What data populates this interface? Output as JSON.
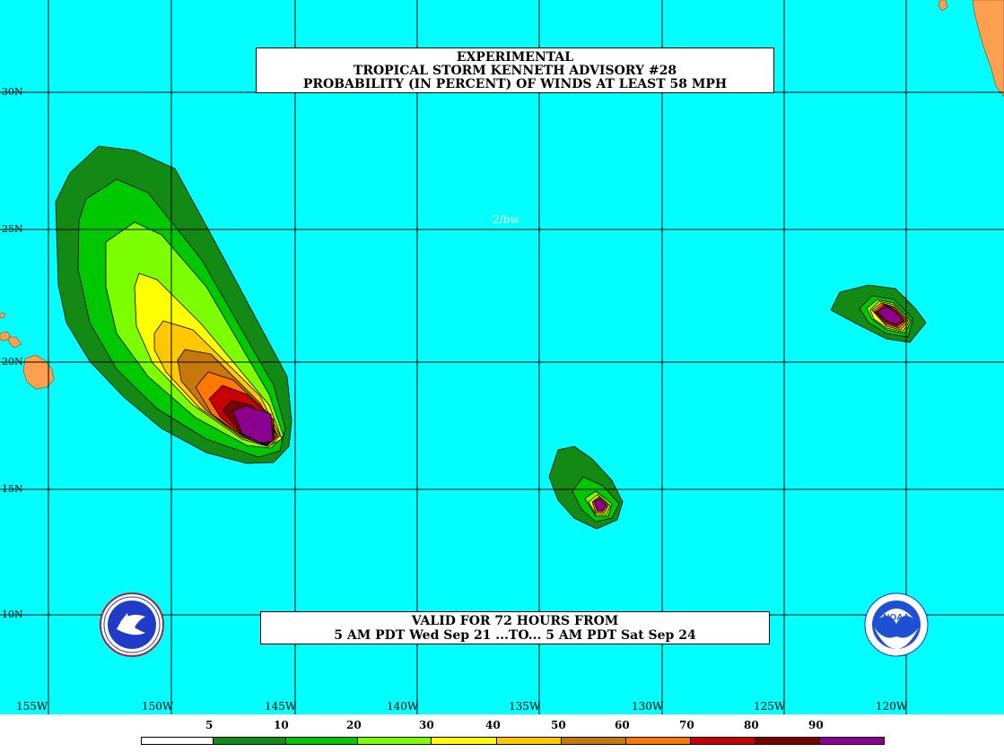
{
  "title": {
    "line1": "EXPERIMENTAL",
    "line2": "TROPICAL STORM KENNETH ADVISORY #28",
    "line3": "PROBABILITY (IN PERCENT) OF WINDS AT LEAST 58 MPH"
  },
  "valid": {
    "line1": "VALID FOR 72 HOURS FROM",
    "line2": "5 AM PDT Wed Sep 21 ...TO... 5 AM PDT Sat Sep 24"
  },
  "stamp": "2/bw",
  "lat_labels": [
    "30N",
    "25N",
    "20N",
    "15N",
    "10N"
  ],
  "lon_labels": [
    "155W",
    "150W",
    "145W",
    "140W",
    "135W",
    "130W",
    "125W",
    "120W"
  ],
  "legend": {
    "thresholds": [
      "5",
      "10",
      "20",
      "30",
      "40",
      "50",
      "60",
      "70",
      "80",
      "90"
    ],
    "colors": [
      "#ffffff",
      "#138a13",
      "#00c800",
      "#7cff00",
      "#ffff00",
      "#ffc800",
      "#c8780a",
      "#ff7800",
      "#c80000",
      "#780000",
      "#8c0090"
    ]
  },
  "colors": {
    "ocean": "#00ffff",
    "land": "#ffa050",
    "grid": "#000000"
  },
  "icons": {
    "nws_logo": "nws-logo-icon",
    "noaa_logo": "noaa-logo-icon"
  }
}
